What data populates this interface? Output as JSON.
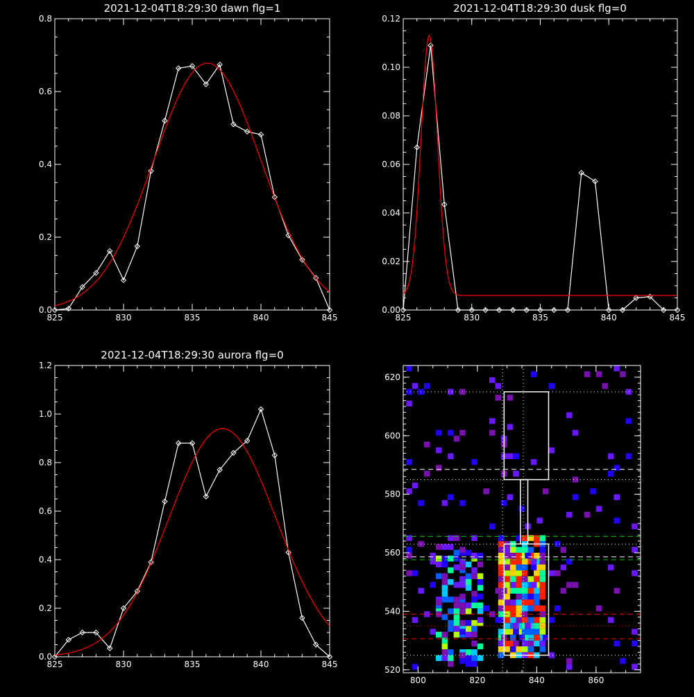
{
  "chart_data": [
    {
      "id": "dawn",
      "type": "line",
      "title": "2021-12-04T18:29:30 dawn flg=1",
      "xlim": [
        825,
        845
      ],
      "ylim": [
        0,
        0.8
      ],
      "xticks": [
        "825",
        "830",
        "835",
        "840",
        "845"
      ],
      "yticks": [
        "0.0",
        "0.2",
        "0.4",
        "0.6",
        "0.8"
      ],
      "series": [
        {
          "style": "data",
          "color": "#ffffff",
          "marker": "diamond",
          "x": [
            825,
            826,
            827,
            828,
            829,
            830,
            831,
            832,
            833,
            834,
            835,
            836,
            837,
            838,
            839,
            840,
            841,
            842,
            843,
            844,
            845
          ],
          "y": [
            0.0,
            0.004,
            0.063,
            0.102,
            0.162,
            0.082,
            0.175,
            0.382,
            0.52,
            0.664,
            0.67,
            0.62,
            0.674,
            0.51,
            0.49,
            0.482,
            0.31,
            0.205,
            0.138,
            0.088,
            0.0
          ]
        },
        {
          "style": "fit",
          "color": "#ff0000",
          "gaussian": {
            "amp": 0.678,
            "center": 836.1,
            "sigma": 3.9,
            "offset": 0.0
          }
        }
      ]
    },
    {
      "id": "dusk",
      "type": "line",
      "title": "2021-12-04T18:29:30 dusk flg=0",
      "xlim": [
        825,
        845
      ],
      "ylim": [
        0,
        0.12
      ],
      "xticks": [
        "825",
        "830",
        "835",
        "840",
        "845"
      ],
      "yticks": [
        "0.00",
        "0.02",
        "0.04",
        "0.06",
        "0.08",
        "0.10",
        "0.12"
      ],
      "series": [
        {
          "style": "data",
          "color": "#ffffff",
          "marker": "diamond",
          "x": [
            825,
            826,
            827,
            828,
            829,
            830,
            831,
            832,
            833,
            834,
            835,
            836,
            837,
            838,
            839,
            840,
            841,
            842,
            843,
            844,
            845
          ],
          "y": [
            0.0,
            0.067,
            0.109,
            0.0435,
            0.0,
            0.0,
            0.0,
            0.0,
            0.0,
            0.0,
            0.0,
            0.0,
            0.0,
            0.0565,
            0.053,
            0.0,
            0.0,
            0.005,
            0.0055,
            0.0,
            0.0
          ]
        },
        {
          "style": "fit",
          "color": "#ff0000",
          "gaussian": {
            "amp": 0.107,
            "center": 826.9,
            "sigma": 0.6,
            "offset": 0.006
          }
        }
      ]
    },
    {
      "id": "aurora",
      "type": "line",
      "title": "2021-12-04T18:29:30 aurora flg=0",
      "xlim": [
        825,
        845
      ],
      "ylim": [
        0,
        1.2
      ],
      "xticks": [
        "825",
        "830",
        "835",
        "840",
        "845"
      ],
      "yticks": [
        "0.0",
        "0.2",
        "0.4",
        "0.6",
        "0.8",
        "1.0",
        "1.2"
      ],
      "series": [
        {
          "style": "data",
          "color": "#ffffff",
          "marker": "diamond",
          "x": [
            825,
            826,
            827,
            828,
            829,
            830,
            831,
            832,
            833,
            834,
            835,
            836,
            837,
            838,
            839,
            840,
            841,
            842,
            843,
            844,
            845
          ],
          "y": [
            0.0,
            0.07,
            0.1,
            0.1,
            0.035,
            0.2,
            0.27,
            0.39,
            0.64,
            0.88,
            0.88,
            0.66,
            0.77,
            0.84,
            0.89,
            1.02,
            0.83,
            0.43,
            0.16,
            0.05,
            0.0
          ]
        },
        {
          "style": "fit",
          "color": "#ff0000",
          "gaussian": {
            "amp": 0.94,
            "center": 837.2,
            "sigma": 3.9,
            "offset": 0.0
          }
        }
      ]
    },
    {
      "id": "heatmap",
      "type": "heatmap",
      "xlim": [
        795,
        875
      ],
      "ylim": [
        519,
        624
      ],
      "xticks": [
        "800",
        "820",
        "840",
        "860"
      ],
      "yticks": [
        "520",
        "540",
        "560",
        "580",
        "600",
        "620"
      ],
      "colormap": [
        "#2000ff",
        "#6a18ff",
        "#7a10b0",
        "#0060ff",
        "#00c8ff",
        "#00ff9a",
        "#b4ff00",
        "#ffd000",
        "#ff2000"
      ],
      "cell": 2,
      "bands": [
        {
          "x": [
            806,
            822
          ],
          "y": [
            521,
            563
          ],
          "density": 0.55,
          "peak": 0.75
        },
        {
          "x": [
            827,
            843
          ],
          "y": [
            524,
            566
          ],
          "density": 0.9,
          "peak": 1.0
        },
        {
          "x": [
            796,
            874
          ],
          "y": [
            520,
            624
          ],
          "density": 0.07,
          "peak": 0.3
        }
      ],
      "boxes": [
        {
          "x": [
            829,
            844
          ],
          "y": [
            525,
            563
          ],
          "color": "#ffffff"
        },
        {
          "x": [
            829,
            844
          ],
          "y": [
            585,
            615
          ],
          "color": "#ffffff"
        },
        {
          "x": [
            834.5,
            837
          ],
          "y": [
            563,
            585
          ],
          "color": "#ffffff"
        }
      ],
      "hlines": [
        {
          "y": 615,
          "color": "#ffffff",
          "dash": "dotted"
        },
        {
          "y": 588.5,
          "color": "#ffffff",
          "dash": "dashed"
        },
        {
          "y": 585,
          "color": "#ffffff",
          "dash": "dotted"
        },
        {
          "y": 565.6,
          "color": "#00cc00",
          "dash": "dashed"
        },
        {
          "y": 563,
          "color": "#ffffff",
          "dash": "dotted"
        },
        {
          "y": 558.6,
          "color": "#ffffff",
          "dash": "dashed"
        },
        {
          "y": 557.6,
          "color": "#00cc00",
          "dash": "dashed"
        },
        {
          "y": 539,
          "color": "#ff0000",
          "dash": "dashed"
        },
        {
          "y": 535,
          "color": "#ff0000",
          "dash": "dotted"
        },
        {
          "y": 530.6,
          "color": "#ff0000",
          "dash": "dashed"
        },
        {
          "y": 525,
          "color": "#ffffff",
          "dash": "dotted"
        }
      ],
      "vlines": [
        {
          "x": 828.5,
          "color": "#ffffff",
          "dash": "dotted"
        },
        {
          "x": 835.5,
          "color": "#ffffff",
          "dash": "dotted"
        }
      ]
    }
  ]
}
